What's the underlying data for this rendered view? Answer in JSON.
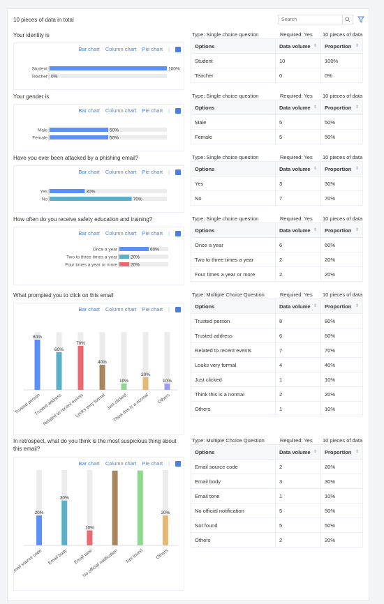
{
  "header": {
    "total_label": "10 pieces of data in total",
    "search_placeholder": "Search"
  },
  "tabs": {
    "bar": "Bar chart",
    "column": "Column chart",
    "pie": "Pie chart"
  },
  "table_headers": {
    "options": "Options",
    "volume": "Data volume",
    "proportion": "Proportion"
  },
  "colors": {
    "accent": "#4a7ee0",
    "bar_palette": [
      "#5b8ff9",
      "#5ab0c9",
      "#e8696f",
      "#a9865e",
      "#8ed98f",
      "#e5b873",
      "#9c9df0"
    ],
    "track": "#ececec"
  },
  "questions": [
    {
      "title": "Your identity is",
      "type": "Type: Single choice question",
      "required": "Required: Yes",
      "pieces": "10 pieces of data",
      "chart_kind": "bar",
      "rows": [
        {
          "option": "Student",
          "volume": "10",
          "proportion": "100%",
          "value": 100
        },
        {
          "option": "Teacher",
          "volume": "0",
          "proportion": "0%",
          "value": 0
        }
      ]
    },
    {
      "title": "Your gender is",
      "type": "Type: Single choice question",
      "required": "Required: Yes",
      "pieces": "10 pieces of data",
      "chart_kind": "bar",
      "rows": [
        {
          "option": "Male",
          "volume": "5",
          "proportion": "50%",
          "value": 50
        },
        {
          "option": "Female",
          "volume": "5",
          "proportion": "50%",
          "value": 50
        }
      ]
    },
    {
      "title": "Have you ever been attacked by a phishing email?",
      "type": "Type: Single choice question",
      "required": "Required: Yes",
      "pieces": "10 pieces of data",
      "chart_kind": "bar",
      "rows": [
        {
          "option": "Yes",
          "volume": "3",
          "proportion": "30%",
          "value": 30
        },
        {
          "option": "No",
          "volume": "7",
          "proportion": "70%",
          "value": 70
        }
      ]
    },
    {
      "title": "How often do you receive safety education and training?",
      "type": "Type: Single choice question",
      "required": "Required: Yes",
      "pieces": "10 pieces of data",
      "chart_kind": "bar",
      "rows": [
        {
          "option": "Once a year",
          "volume": "6",
          "proportion": "60%",
          "value": 60
        },
        {
          "option": "Two to three times a year",
          "volume": "2",
          "proportion": "20%",
          "value": 20
        },
        {
          "option": "Four times a year or more",
          "volume": "2",
          "proportion": "20%",
          "value": 20
        }
      ]
    },
    {
      "title": "What prompted you to click on this email",
      "type": "Type: Multiple Choice Question",
      "required": "Required: Yes",
      "pieces": "10 pieces of data",
      "chart_kind": "column",
      "rows": [
        {
          "option": "Trusted person",
          "volume": "8",
          "proportion": "80%",
          "value": 80
        },
        {
          "option": "Trusted address",
          "volume": "6",
          "proportion": "60%",
          "value": 60
        },
        {
          "option": "Related to recent events",
          "volume": "7",
          "proportion": "70%",
          "value": 70
        },
        {
          "option": "Looks very formal",
          "volume": "4",
          "proportion": "40%",
          "value": 40
        },
        {
          "option": "Just clicked",
          "volume": "1",
          "proportion": "10%",
          "value": 10
        },
        {
          "option": "Think this is a normal",
          "volume": "2",
          "proportion": "20%",
          "value": 20
        },
        {
          "option": "Others",
          "volume": "1",
          "proportion": "10%",
          "value": 10
        }
      ]
    },
    {
      "title": "In retrospect, what do you think is the most suspicious thing about this email?",
      "type": "Type: Multiple Choice Question",
      "required": "Required: Yes",
      "pieces": "10 pieces of data",
      "chart_kind": "column",
      "rows": [
        {
          "option": "Email source code",
          "volume": "2",
          "proportion": "20%",
          "value": 20
        },
        {
          "option": "Email body",
          "volume": "3",
          "proportion": "30%",
          "value": 30
        },
        {
          "option": "Email tone",
          "volume": "1",
          "proportion": "10%",
          "value": 10
        },
        {
          "option": "No official notification",
          "volume": "5",
          "proportion": "50%",
          "value": 50
        },
        {
          "option": "Not found",
          "volume": "5",
          "proportion": "50%",
          "value": 50
        },
        {
          "option": "Others",
          "volume": "2",
          "proportion": "20%",
          "value": 20
        }
      ]
    }
  ],
  "chart_data": [
    {
      "type": "bar",
      "categories": [
        "Student",
        "Teacher"
      ],
      "values": [
        100,
        0
      ],
      "labels": [
        "100%",
        "0%"
      ],
      "ylim": [
        0,
        100
      ]
    },
    {
      "type": "bar",
      "categories": [
        "Male",
        "Female"
      ],
      "values": [
        50,
        50
      ],
      "labels": [
        "50%",
        "50%"
      ],
      "ylim": [
        0,
        100
      ]
    },
    {
      "type": "bar",
      "categories": [
        "Yes",
        "No"
      ],
      "values": [
        30,
        70
      ],
      "labels": [
        "30%",
        "70%"
      ],
      "ylim": [
        0,
        100
      ]
    },
    {
      "type": "bar",
      "categories": [
        "Once a year",
        "Two to three times a year",
        "Four times a year or more"
      ],
      "values": [
        60,
        20,
        20
      ],
      "labels": [
        "60%",
        "20%",
        "20%"
      ],
      "ylim": [
        0,
        100
      ]
    },
    {
      "type": "bar",
      "categories": [
        "Trusted person",
        "Trusted address",
        "Related to recent events",
        "Looks very formal",
        "Just clicked",
        "Think this is a normal",
        "Others"
      ],
      "values": [
        80,
        60,
        70,
        40,
        10,
        20,
        10
      ],
      "labels": [
        "80%",
        "60%",
        "70%",
        "40%",
        "10%",
        "20%",
        "10%"
      ],
      "ylim": [
        0,
        100
      ]
    },
    {
      "type": "bar",
      "categories": [
        "Email source code",
        "Email body",
        "Email tone",
        "No official notification",
        "Not found",
        "Others"
      ],
      "values": [
        20,
        30,
        10,
        50,
        50,
        20
      ],
      "labels": [
        "20%",
        "30%",
        "10%",
        "50%",
        "50%",
        "20%"
      ],
      "ylim": [
        0,
        100
      ]
    }
  ]
}
